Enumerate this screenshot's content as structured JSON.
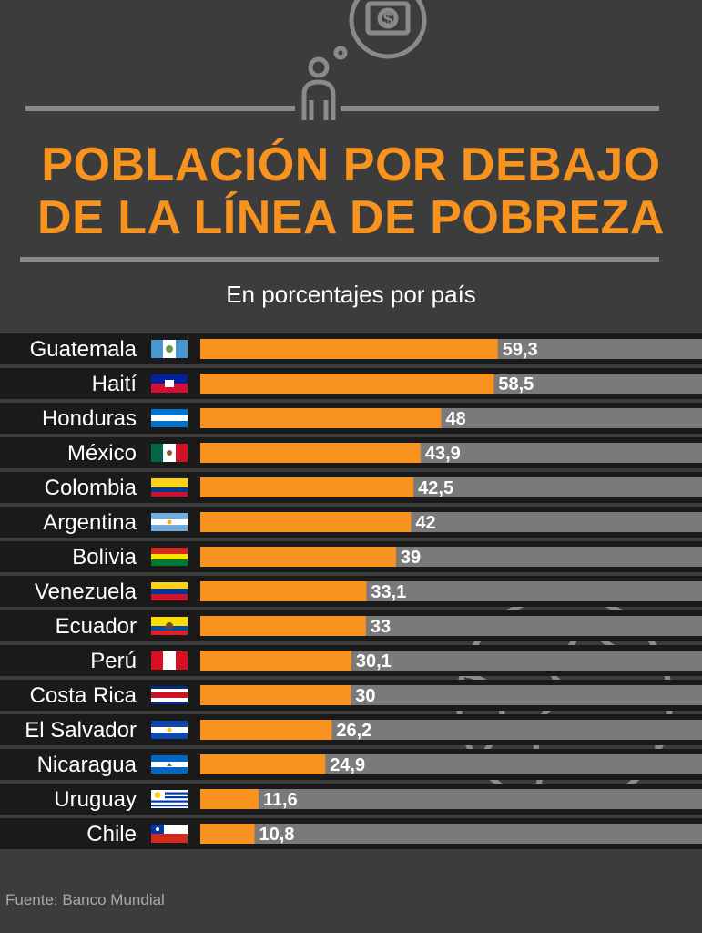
{
  "header": {
    "title_line1": "POBLACIÓN POR DEBAJO",
    "title_line2": "DE LA LÍNEA DE POBREZA",
    "subtitle": "En porcentajes por país",
    "icon": "person-thinking-money-icon"
  },
  "colors": {
    "background": "#3c3c3c",
    "accent": "#f7931e",
    "bar_track": "#7a7a7a",
    "row_band": "#1a1a1a"
  },
  "chart_data": {
    "type": "bar",
    "orientation": "horizontal",
    "title": "POBLACIÓN POR DEBAJO DE LA LÍNEA DE POBREZA",
    "subtitle": "En porcentajes por país",
    "xlim": [
      0,
      100
    ],
    "categories": [
      "Guatemala",
      "Haití",
      "Honduras",
      "México",
      "Colombia",
      "Argentina",
      "Bolivia",
      "Venezuela",
      "Ecuador",
      "Perú",
      "Costa Rica",
      "El Salvador",
      "Nicaragua",
      "Uruguay",
      "Chile"
    ],
    "values": [
      59.3,
      58.5,
      48,
      43.9,
      42.5,
      42,
      39,
      33.1,
      33,
      30.1,
      30,
      26.2,
      24.9,
      11.6,
      10.8
    ],
    "value_labels": [
      "59,3",
      "58,5",
      "48",
      "43,9",
      "42,5",
      "42",
      "39",
      "33,1",
      "33",
      "30,1",
      "30",
      "26,2",
      "24,9",
      "11,6",
      "10,8"
    ],
    "flags": [
      "guatemala-flag-icon",
      "haiti-flag-icon",
      "honduras-flag-icon",
      "mexico-flag-icon",
      "colombia-flag-icon",
      "argentina-flag-icon",
      "bolivia-flag-icon",
      "venezuela-flag-icon",
      "ecuador-flag-icon",
      "peru-flag-icon",
      "costa-rica-flag-icon",
      "el-salvador-flag-icon",
      "nicaragua-flag-icon",
      "uruguay-flag-icon",
      "chile-flag-icon"
    ]
  },
  "footer": {
    "source": "Fuente: Banco Mundial"
  },
  "decorations": {
    "globe": "globe-icon"
  }
}
